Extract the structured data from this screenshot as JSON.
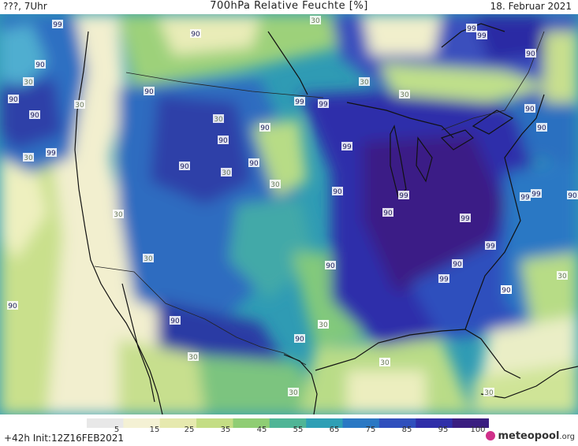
{
  "header": {
    "left": "???, 7Uhr",
    "title": "700hPa Relative Feuchte [%]",
    "date": "18. Februar 2021"
  },
  "footer": {
    "run": "+42h  Init:12Z16FEB2021",
    "brand": "meteopool",
    "brand_suffix": ".org"
  },
  "legend": {
    "ticks": [
      "5",
      "15",
      "25",
      "35",
      "45",
      "55",
      "65",
      "75",
      "85",
      "95",
      "100"
    ],
    "colors": [
      "#e8e8e8",
      "#f4f1d4",
      "#e6e9ae",
      "#c4dd84",
      "#8fcd74",
      "#4fb596",
      "#2e9fb5",
      "#2a78c4",
      "#2f4fbd",
      "#2f2ea8",
      "#3a1d80"
    ]
  },
  "map_labels": [
    {
      "t": "99"
    },
    {
      "t": "90"
    },
    {
      "t": "30"
    },
    {
      "t": "90"
    },
    {
      "t": "90"
    },
    {
      "t": "99"
    },
    {
      "t": "30"
    },
    {
      "t": "90"
    },
    {
      "t": "30"
    },
    {
      "t": "30"
    },
    {
      "t": "30"
    },
    {
      "t": "90"
    },
    {
      "t": "90"
    },
    {
      "t": "30"
    },
    {
      "t": "90"
    },
    {
      "t": "90"
    },
    {
      "t": "30"
    },
    {
      "t": "99"
    },
    {
      "t": "99"
    },
    {
      "t": "90"
    },
    {
      "t": "90"
    },
    {
      "t": "30"
    },
    {
      "t": "99"
    },
    {
      "t": "90"
    },
    {
      "t": "99"
    },
    {
      "t": "90"
    },
    {
      "t": "90"
    },
    {
      "t": "30"
    },
    {
      "t": "30"
    },
    {
      "t": "99"
    },
    {
      "t": "99"
    },
    {
      "t": "90"
    },
    {
      "t": "90"
    },
    {
      "t": "30"
    },
    {
      "t": "30"
    },
    {
      "t": "30"
    },
    {
      "t": "90"
    },
    {
      "t": "90"
    },
    {
      "t": "30"
    },
    {
      "t": "30"
    },
    {
      "t": "90"
    },
    {
      "t": "90"
    },
    {
      "t": "30"
    },
    {
      "t": "90"
    },
    {
      "t": "99"
    },
    {
      "t": "99"
    },
    {
      "t": "90"
    },
    {
      "t": "99"
    },
    {
      "t": "99"
    },
    {
      "t": "90"
    },
    {
      "t": "30"
    },
    {
      "t": "30"
    },
    {
      "t": "30"
    },
    {
      "t": "99"
    }
  ]
}
